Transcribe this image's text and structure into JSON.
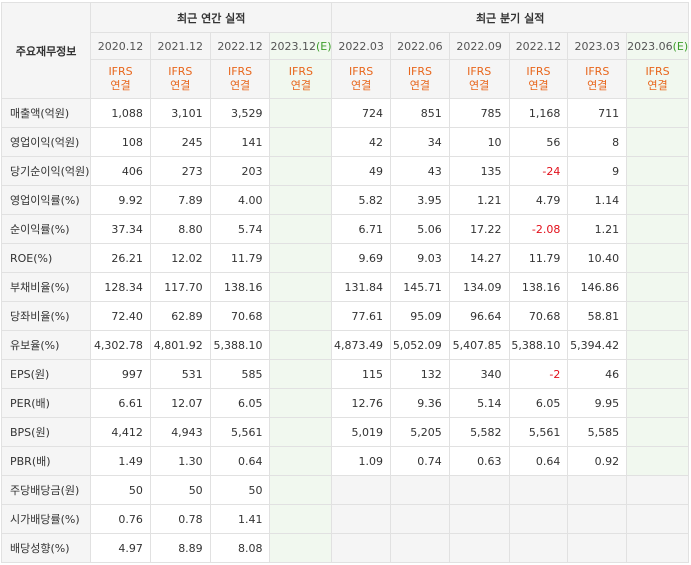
{
  "header": {
    "corner_label": "주요재무정보",
    "annual_title": "최근 연간 실적",
    "quarter_title": "최근 분기 실적",
    "annual_periods": [
      "2020.12",
      "2021.12",
      "2022.12",
      "2023.12"
    ],
    "annual_est_suffix": "(E)",
    "quarter_periods": [
      "2022.03",
      "2022.06",
      "2022.09",
      "2022.12",
      "2023.03",
      "2023.06"
    ],
    "quarter_est_suffix": "(E)",
    "std_top": "IFRS",
    "std_bottom": "연결"
  },
  "rows": [
    {
      "label": "매출액(억원)",
      "annual": [
        "1,088",
        "3,101",
        "3,529",
        ""
      ],
      "quarter": [
        "724",
        "851",
        "785",
        "1,168",
        "711",
        ""
      ]
    },
    {
      "label": "영업이익(억원)",
      "annual": [
        "108",
        "245",
        "141",
        ""
      ],
      "quarter": [
        "42",
        "34",
        "10",
        "56",
        "8",
        ""
      ]
    },
    {
      "label": "당기순이익(억원)",
      "annual": [
        "406",
        "273",
        "203",
        ""
      ],
      "quarter": [
        "49",
        "43",
        "135",
        "-24",
        "9",
        ""
      ]
    },
    {
      "label": "영업이익률(%)",
      "annual": [
        "9.92",
        "7.89",
        "4.00",
        ""
      ],
      "quarter": [
        "5.82",
        "3.95",
        "1.21",
        "4.79",
        "1.14",
        ""
      ]
    },
    {
      "label": "순이익률(%)",
      "annual": [
        "37.34",
        "8.80",
        "5.74",
        ""
      ],
      "quarter": [
        "6.71",
        "5.06",
        "17.22",
        "-2.08",
        "1.21",
        ""
      ]
    },
    {
      "label": "ROE(%)",
      "annual": [
        "26.21",
        "12.02",
        "11.79",
        ""
      ],
      "quarter": [
        "9.69",
        "9.03",
        "14.27",
        "11.79",
        "10.40",
        ""
      ]
    },
    {
      "label": "부채비율(%)",
      "annual": [
        "128.34",
        "117.70",
        "138.16",
        ""
      ],
      "quarter": [
        "131.84",
        "145.71",
        "134.09",
        "138.16",
        "146.86",
        ""
      ]
    },
    {
      "label": "당좌비율(%)",
      "annual": [
        "72.40",
        "62.89",
        "70.68",
        ""
      ],
      "quarter": [
        "77.61",
        "95.09",
        "96.64",
        "70.68",
        "58.81",
        ""
      ]
    },
    {
      "label": "유보율(%)",
      "annual": [
        "4,302.78",
        "4,801.92",
        "5,388.10",
        ""
      ],
      "quarter": [
        "4,873.49",
        "5,052.09",
        "5,407.85",
        "5,388.10",
        "5,394.42",
        ""
      ]
    },
    {
      "label": "EPS(원)",
      "annual": [
        "997",
        "531",
        "585",
        ""
      ],
      "quarter": [
        "115",
        "132",
        "340",
        "-2",
        "46",
        ""
      ]
    },
    {
      "label": "PER(배)",
      "annual": [
        "6.61",
        "12.07",
        "6.05",
        ""
      ],
      "quarter": [
        "12.76",
        "9.36",
        "5.14",
        "6.05",
        "9.95",
        ""
      ]
    },
    {
      "label": "BPS(원)",
      "annual": [
        "4,412",
        "4,943",
        "5,561",
        ""
      ],
      "quarter": [
        "5,019",
        "5,205",
        "5,582",
        "5,561",
        "5,585",
        ""
      ]
    },
    {
      "label": "PBR(배)",
      "annual": [
        "1.49",
        "1.30",
        "0.64",
        ""
      ],
      "quarter": [
        "1.09",
        "0.74",
        "0.63",
        "0.64",
        "0.92",
        ""
      ]
    },
    {
      "label": "주당배당금(원)",
      "annual": [
        "50",
        "50",
        "50",
        ""
      ],
      "quarter": [
        "",
        "",
        "",
        "",
        "",
        ""
      ]
    },
    {
      "label": "시가배당률(%)",
      "annual": [
        "0.76",
        "0.78",
        "1.41",
        ""
      ],
      "quarter": [
        "",
        "",
        "",
        "",
        "",
        ""
      ]
    },
    {
      "label": "배당성향(%)",
      "annual": [
        "4.97",
        "8.89",
        "8.08",
        ""
      ],
      "quarter": [
        "",
        "",
        "",
        "",
        "",
        ""
      ]
    }
  ],
  "group_starts": [
    3,
    6,
    9,
    13
  ],
  "empty_quarter_rows": [
    13,
    14,
    15
  ],
  "colors": {
    "std": "#e8661c",
    "estimate_bg": "#f1f8ef",
    "estimate_mark": "#3c9d2a",
    "negative": "#e2101b"
  }
}
